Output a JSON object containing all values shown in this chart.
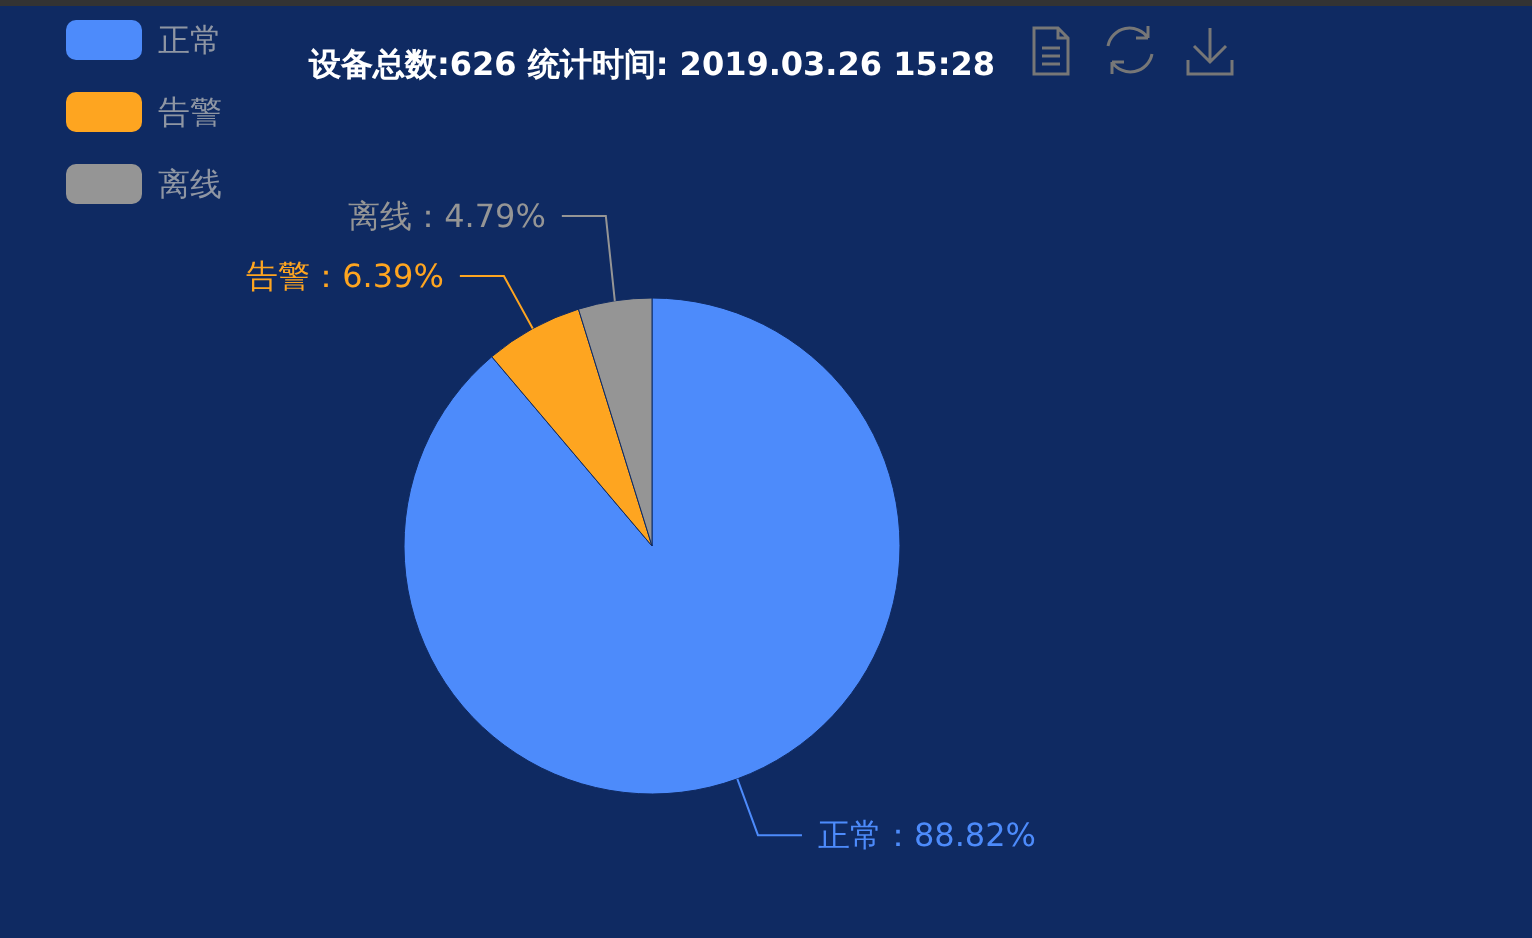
{
  "chart_data": {
    "type": "pie",
    "title": "设备总数:626  统计时间: 2019.03.26 15:28",
    "categories": [
      "正常",
      "告警",
      "离线"
    ],
    "values": [
      88.82,
      6.39,
      4.79
    ],
    "colors": [
      "#4d8bfb",
      "#fea520",
      "#959595"
    ],
    "value_labels": [
      "正常：88.82%",
      "告警：6.39%",
      "离线：4.79%"
    ],
    "legend": "top left"
  }
}
